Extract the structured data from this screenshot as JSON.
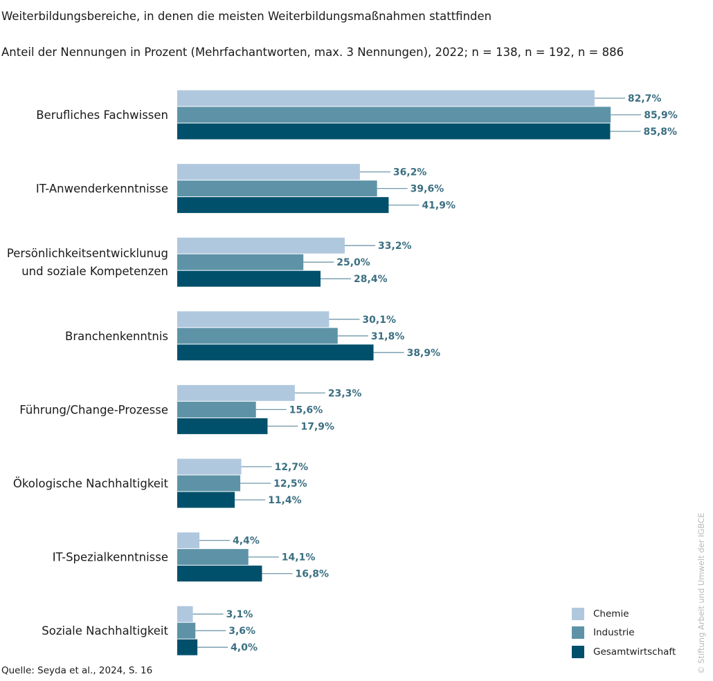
{
  "title": "Weiterbildungsbereiche, in denen die meisten Weiterbildungsmaßnahmen stattfinden",
  "subtitle": "Anteil der Nennungen in Prozent (Mehrfachantworten, max. 3 Nennungen), 2022; n = 138, n = 192, n = 886",
  "source": "Quelle: Seyda et al., 2024, S. 16",
  "copyright": "© Stiftung Arbeit und Umwelt der IGBCE",
  "colors": {
    "Chemie": "#b0c8de",
    "Industrie": "#5e93a7",
    "Gesamtwirtschaft": "#00506b",
    "label": "#3b6f82",
    "leader": "#6f97a8"
  },
  "chart_data": {
    "type": "bar",
    "orientation": "horizontal",
    "title": "Weiterbildungsbereiche, in denen die meisten Weiterbildungsmaßnahmen stattfinden",
    "xlabel": "",
    "ylabel": "",
    "xlim": [
      0,
      100
    ],
    "grid": false,
    "legend_position": "bottom-right",
    "categories": [
      [
        "Berufliches Fachwissen"
      ],
      [
        "IT-Anwenderkenntnisse"
      ],
      [
        "Persönlichkeitsentwicklunug",
        "und soziale Kompetenzen"
      ],
      [
        "Branchenkenntnis"
      ],
      [
        "Führung/Change-Prozesse"
      ],
      [
        "Ökologische Nachhaltigkeit"
      ],
      [
        "IT-Spezialkenntnisse"
      ],
      [
        "Soziale Nachhaltigkeit"
      ]
    ],
    "series": [
      {
        "name": "Chemie",
        "values": [
          82.7,
          36.2,
          33.2,
          30.1,
          23.3,
          12.7,
          4.4,
          3.1
        ],
        "labels": [
          "82,7%",
          "36,2%",
          "33,2%",
          "30,1%",
          "23,3%",
          "12,7%",
          "4,4%",
          "3,1%"
        ]
      },
      {
        "name": "Industrie",
        "values": [
          85.9,
          39.6,
          25.0,
          31.8,
          15.6,
          12.5,
          14.1,
          3.6
        ],
        "labels": [
          "85,9%",
          "39,6%",
          "25,0%",
          "31,8%",
          "15,6%",
          "12,5%",
          "14,1%",
          "3,6%"
        ]
      },
      {
        "name": "Gesamtwirtschaft",
        "values": [
          85.8,
          41.9,
          28.4,
          38.9,
          17.9,
          11.4,
          16.8,
          4.0
        ],
        "labels": [
          "85,8%",
          "41,9%",
          "28,4%",
          "38,9%",
          "17,9%",
          "11,4%",
          "16,8%",
          "4,0%"
        ]
      }
    ]
  }
}
